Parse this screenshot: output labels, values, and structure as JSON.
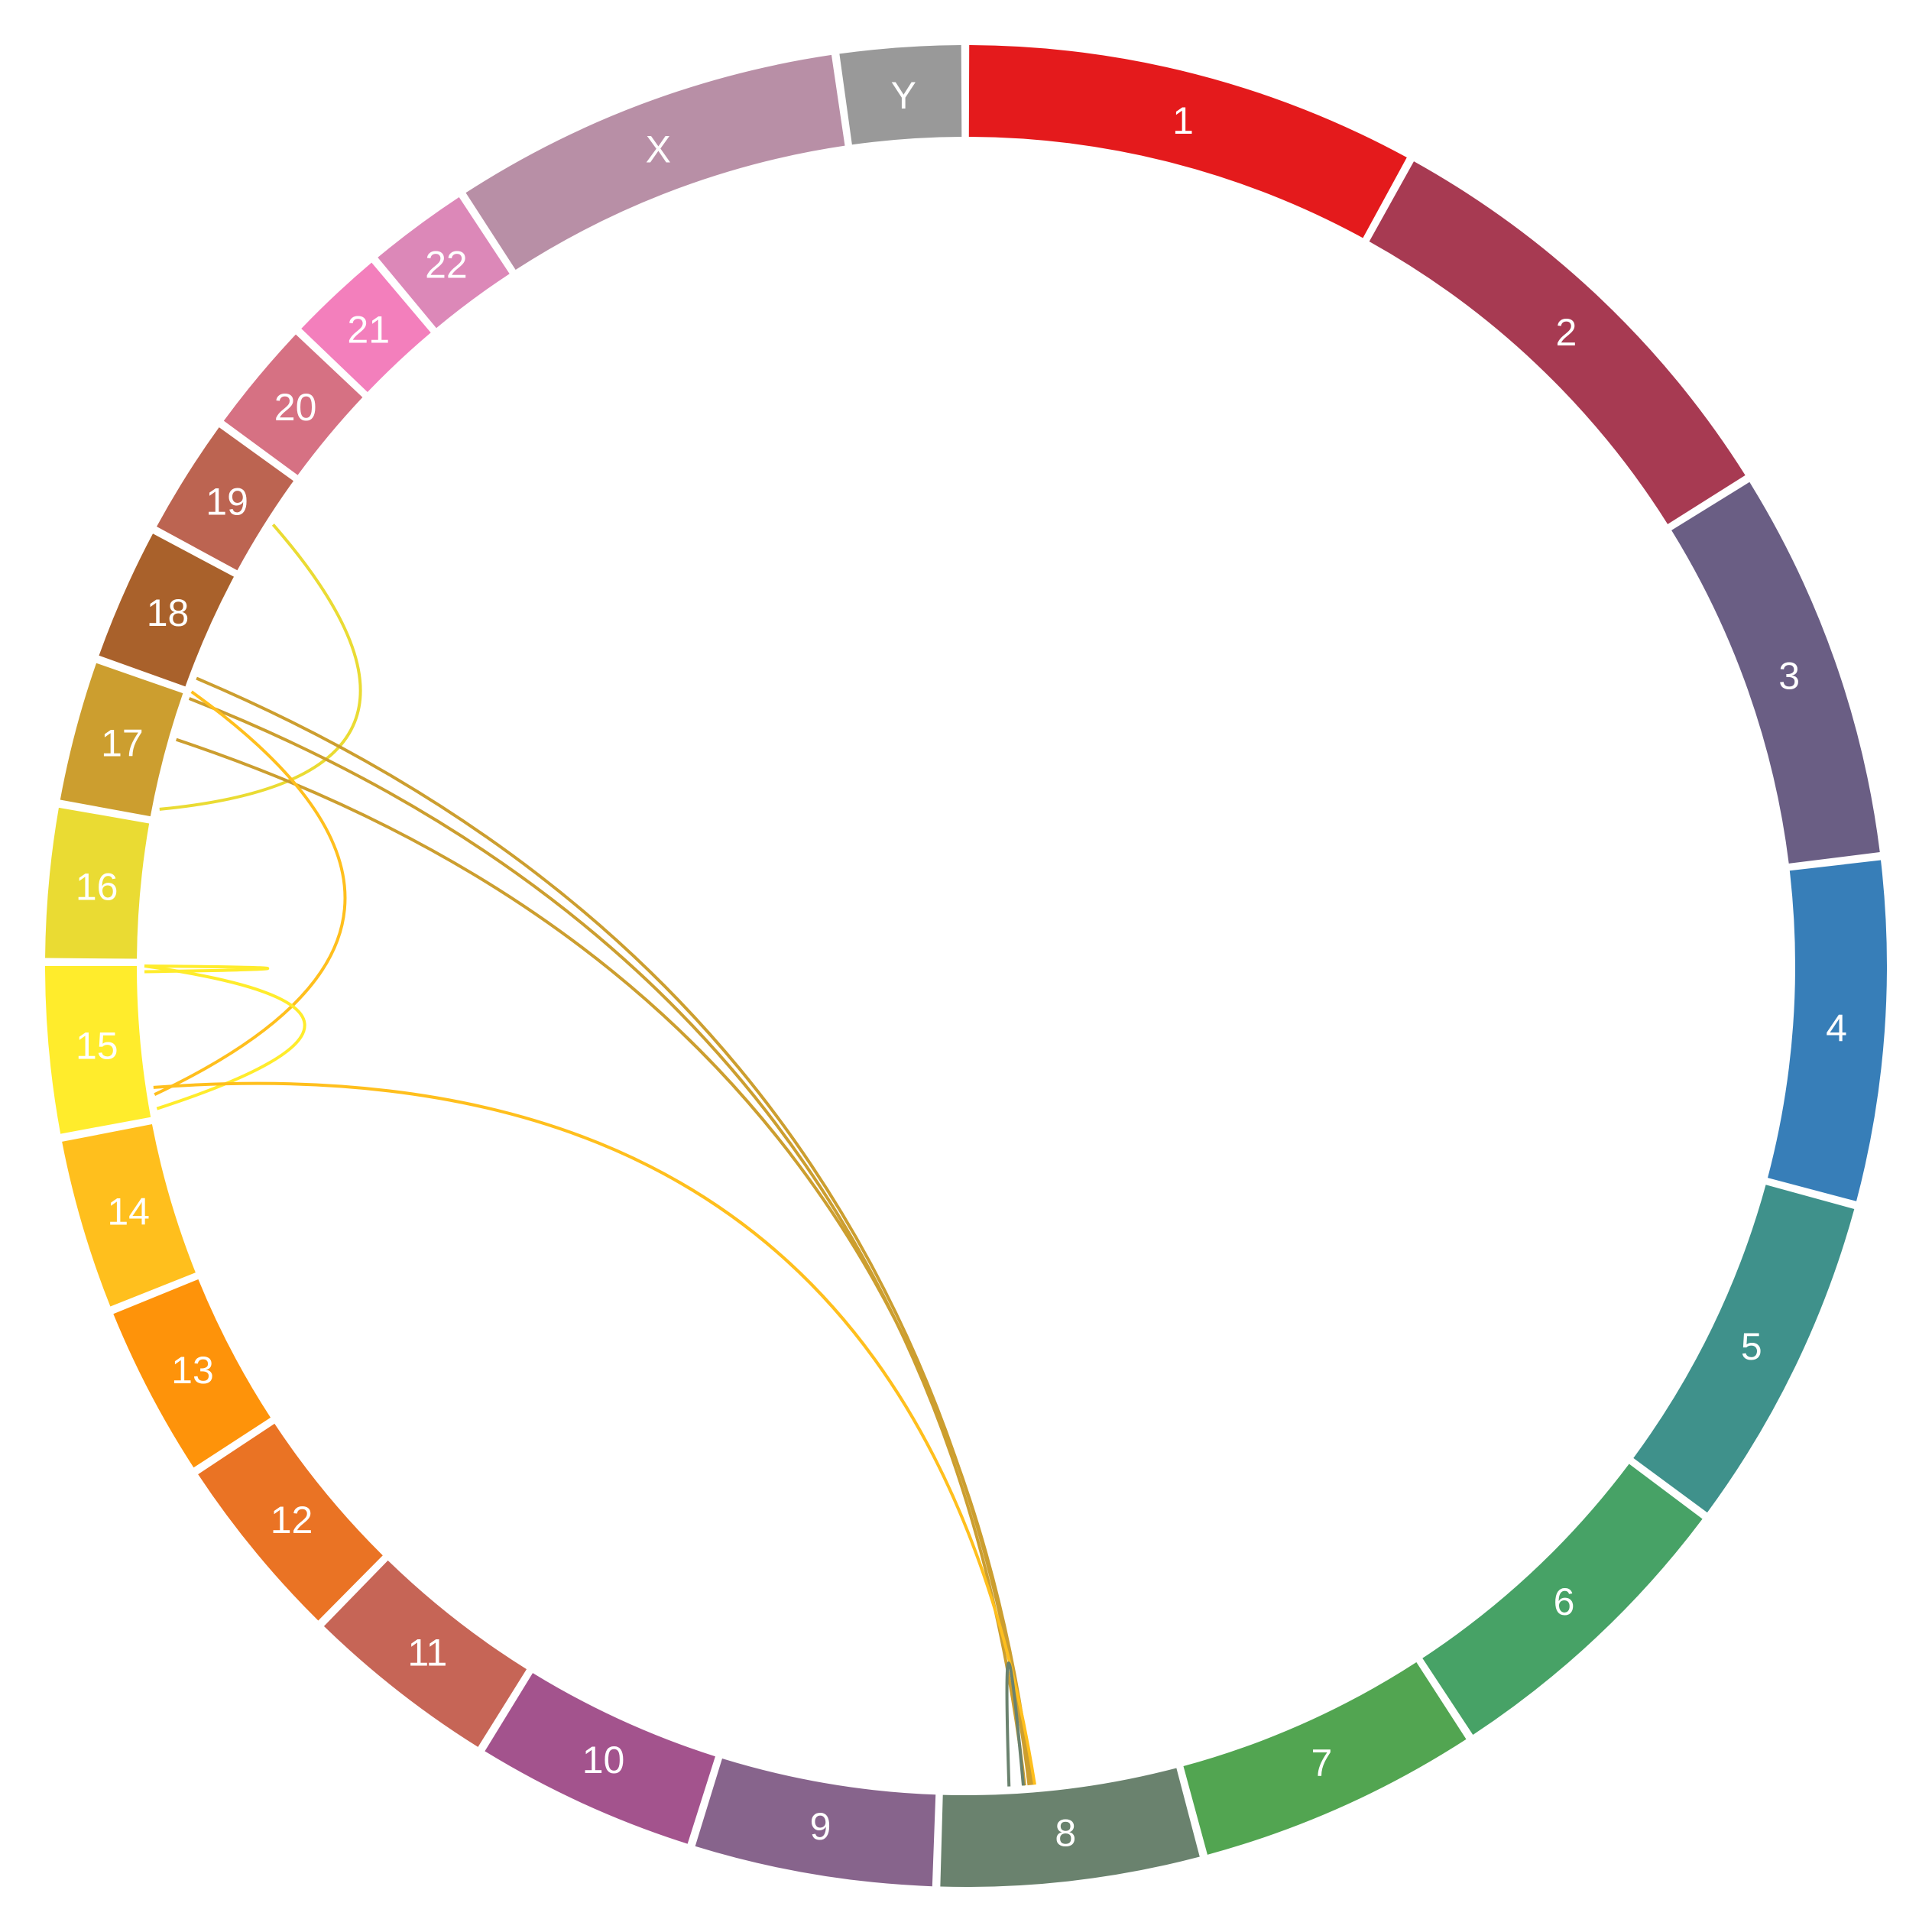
{
  "chromosomes": [
    {
      "id": "1",
      "label": "1",
      "color": "#e41a1c"
    },
    {
      "id": "2",
      "label": "2",
      "color": "#a73a52"
    },
    {
      "id": "3",
      "label": "3",
      "color": "#6a5e84"
    },
    {
      "id": "4",
      "label": "4",
      "color": "#377eb8"
    },
    {
      "id": "5",
      "label": "5",
      "color": "#3f918b"
    },
    {
      "id": "6",
      "label": "6",
      "color": "#47a266"
    },
    {
      "id": "7",
      "label": "7",
      "color": "#52a551"
    },
    {
      "id": "8",
      "label": "8",
      "color": "#6a826e"
    },
    {
      "id": "9",
      "label": "9",
      "color": "#87648c"
    },
    {
      "id": "10",
      "label": "10",
      "color": "#a3538d"
    },
    {
      "id": "11",
      "label": "11",
      "color": "#c66556"
    },
    {
      "id": "12",
      "label": "12",
      "color": "#ea7324"
    },
    {
      "id": "13",
      "label": "13",
      "color": "#fe930a"
    },
    {
      "id": "14",
      "label": "14",
      "color": "#ffbf1d"
    },
    {
      "id": "15",
      "label": "15",
      "color": "#ffec2c"
    },
    {
      "id": "16",
      "label": "16",
      "color": "#eadb33"
    },
    {
      "id": "17",
      "label": "17",
      "color": "#cc9e2f"
    },
    {
      "id": "18",
      "label": "18",
      "color": "#a9612b"
    },
    {
      "id": "19",
      "label": "19",
      "color": "#bc6451"
    },
    {
      "id": "20",
      "label": "20",
      "color": "#d67183"
    },
    {
      "id": "21",
      "label": "21",
      "color": "#f37fbc"
    },
    {
      "id": "22",
      "label": "22",
      "color": "#dc88b8"
    },
    {
      "id": "X",
      "label": "X",
      "color": "#b88fa6"
    },
    {
      "id": "Y",
      "label": "Y",
      "color": "#999999"
    }
  ],
  "links": [
    {
      "from": "19",
      "to": "16",
      "color": "#eadb33"
    },
    {
      "from": "17",
      "to": "8",
      "color": "#cc9e2f"
    },
    {
      "from": "17",
      "to": "8",
      "color": "#cc9e2f"
    },
    {
      "from": "17",
      "to": "8",
      "color": "#cc9e2f"
    },
    {
      "from": "17",
      "to": "14",
      "color": "#ffbf1d"
    },
    {
      "from": "15",
      "to": "14",
      "color": "#ffec2c"
    },
    {
      "from": "15",
      "to": "15",
      "color": "#ffec2c"
    },
    {
      "from": "14",
      "to": "8",
      "color": "#ffbf1d"
    },
    {
      "from": "8",
      "to": "8",
      "color": "#6a826e"
    }
  ]
}
